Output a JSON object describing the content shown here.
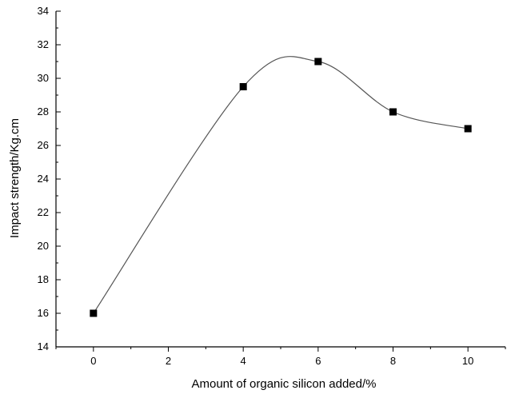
{
  "chart_data": {
    "type": "scatter",
    "title": "",
    "xlabel": "Amount of organic silicon added/%",
    "ylabel": "Impact strength/Kg.cm",
    "xlim": [
      -1,
      11
    ],
    "ylim": [
      14,
      34
    ],
    "x_ticks": [
      0,
      2,
      4,
      6,
      8,
      10
    ],
    "y_ticks": [
      14,
      16,
      18,
      20,
      22,
      24,
      26,
      28,
      30,
      32,
      34
    ],
    "series": [
      {
        "x": [
          0,
          4,
          6,
          8,
          10
        ],
        "y": [
          16,
          29.5,
          31,
          28,
          27
        ],
        "marker": "square",
        "smooth_curve": true
      }
    ],
    "grid": false,
    "legend": "none",
    "colors": {
      "line": "#555555",
      "marker": "#000000",
      "axis": "#000000"
    }
  }
}
